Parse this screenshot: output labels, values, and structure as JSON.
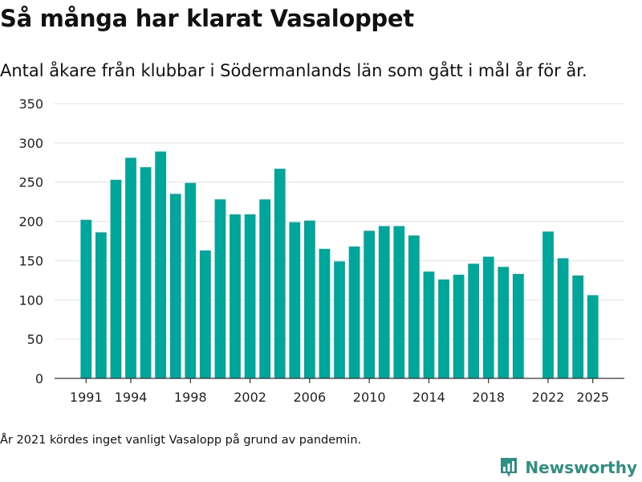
{
  "header": {
    "title": "Så många har klarat Vasaloppet",
    "subtitle": "Antal åkare från klubbar i Södermanlands län som gått i mål år för år."
  },
  "footnote": "År 2021 kördes inget vanligt Vasalopp på grund av pandemin.",
  "brand": {
    "name": "Newsworthy",
    "icon": "newsworthy-logo-icon",
    "color": "#2e8f83"
  },
  "colors": {
    "bar": "#00a69a",
    "grid": "#e2e2e2",
    "axis": "#333333"
  },
  "chart_data": {
    "type": "bar",
    "title": "Så många har klarat Vasaloppet",
    "xlabel": "",
    "ylabel": "",
    "ylim": [
      0,
      350
    ],
    "yticks": [
      0,
      50,
      100,
      150,
      200,
      250,
      300,
      350
    ],
    "xticks": [
      1991,
      1994,
      1998,
      2002,
      2006,
      2010,
      2014,
      2018,
      2022,
      2025
    ],
    "grid": true,
    "categories": [
      1991,
      1992,
      1993,
      1994,
      1995,
      1996,
      1997,
      1998,
      1999,
      2000,
      2001,
      2002,
      2003,
      2004,
      2005,
      2006,
      2007,
      2008,
      2009,
      2010,
      2011,
      2012,
      2013,
      2014,
      2015,
      2016,
      2017,
      2018,
      2019,
      2020,
      2021,
      2022,
      2023,
      2024,
      2025
    ],
    "values": [
      202,
      186,
      253,
      281,
      269,
      289,
      235,
      249,
      163,
      228,
      209,
      209,
      228,
      267,
      199,
      201,
      165,
      149,
      168,
      188,
      194,
      194,
      182,
      136,
      126,
      132,
      146,
      155,
      142,
      133,
      null,
      187,
      153,
      131,
      106
    ]
  }
}
